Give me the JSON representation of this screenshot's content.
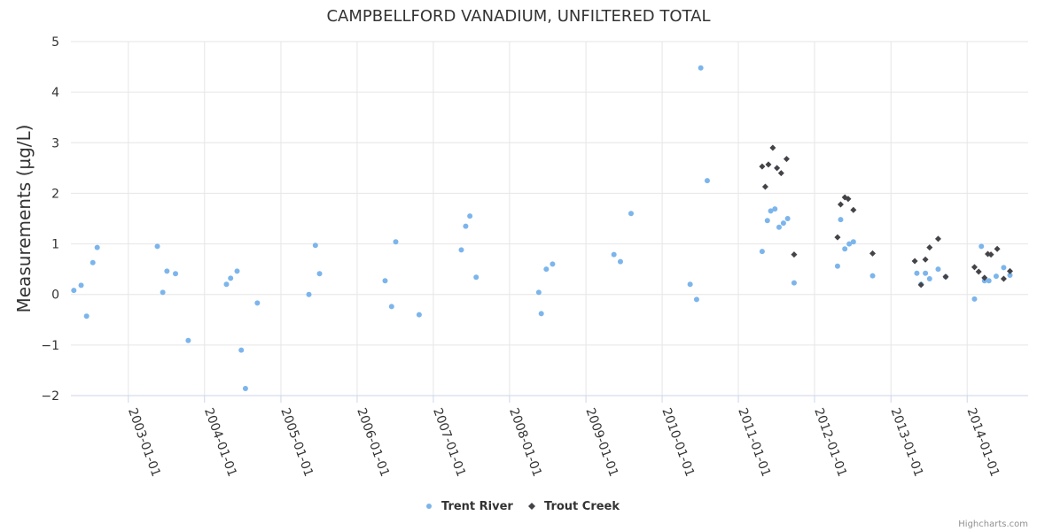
{
  "chart_data": {
    "type": "scatter",
    "title": "CAMPBELLFORD VANADIUM, UNFILTERED TOTAL",
    "ylabel": "Measurements (µg/L)",
    "xlabel": "",
    "ylim": [
      -2,
      5
    ],
    "yticks": [
      -2,
      -1,
      0,
      1,
      2,
      3,
      4,
      5
    ],
    "ytick_labels": [
      "−2",
      "−1",
      "0",
      "1",
      "2",
      "3",
      "4",
      "5"
    ],
    "xlim": [
      "2002-04-01",
      "2014-10-20"
    ],
    "xticks": [
      "2003-01-01",
      "2004-01-01",
      "2005-01-01",
      "2006-01-01",
      "2007-01-01",
      "2008-01-01",
      "2009-01-01",
      "2010-01-01",
      "2011-01-01",
      "2012-01-01",
      "2013-01-01",
      "2014-01-01"
    ],
    "grid": true,
    "legend_position": "bottom-center",
    "series": [
      {
        "name": "Trent River",
        "color": "#7cb5ec",
        "marker": "circle",
        "points": [
          [
            "2002-04-15",
            0.08
          ],
          [
            "2002-05-20",
            0.18
          ],
          [
            "2002-06-15",
            -0.43
          ],
          [
            "2002-07-15",
            0.63
          ],
          [
            "2002-08-05",
            0.93
          ],
          [
            "2003-05-20",
            0.95
          ],
          [
            "2003-06-15",
            0.04
          ],
          [
            "2003-07-05",
            0.46
          ],
          [
            "2003-08-15",
            0.41
          ],
          [
            "2003-10-15",
            -0.91
          ],
          [
            "2004-04-15",
            0.2
          ],
          [
            "2004-05-05",
            0.32
          ],
          [
            "2004-06-05",
            0.46
          ],
          [
            "2004-06-25",
            -1.1
          ],
          [
            "2004-07-15",
            -1.86
          ],
          [
            "2004-09-10",
            -0.17
          ],
          [
            "2005-05-15",
            0.0
          ],
          [
            "2005-06-15",
            0.97
          ],
          [
            "2005-07-05",
            0.41
          ],
          [
            "2006-05-15",
            0.27
          ],
          [
            "2006-06-15",
            -0.24
          ],
          [
            "2006-07-05",
            1.04
          ],
          [
            "2006-10-25",
            -0.4
          ],
          [
            "2007-05-15",
            0.88
          ],
          [
            "2007-06-05",
            1.35
          ],
          [
            "2007-06-25",
            1.55
          ],
          [
            "2007-07-25",
            0.34
          ],
          [
            "2008-05-20",
            0.04
          ],
          [
            "2008-06-01",
            -0.38
          ],
          [
            "2008-06-25",
            0.5
          ],
          [
            "2008-07-25",
            0.6
          ],
          [
            "2009-05-15",
            0.79
          ],
          [
            "2009-06-15",
            0.65
          ],
          [
            "2009-08-05",
            1.6
          ],
          [
            "2010-05-15",
            0.2
          ],
          [
            "2010-06-15",
            -0.1
          ],
          [
            "2010-07-05",
            4.48
          ],
          [
            "2010-08-05",
            2.25
          ],
          [
            "2011-04-25",
            0.85
          ],
          [
            "2011-05-20",
            1.46
          ],
          [
            "2011-06-05",
            1.65
          ],
          [
            "2011-06-25",
            1.69
          ],
          [
            "2011-07-15",
            1.33
          ],
          [
            "2011-08-05",
            1.41
          ],
          [
            "2011-08-25",
            1.5
          ],
          [
            "2011-09-25",
            0.23
          ],
          [
            "2012-04-20",
            0.56
          ],
          [
            "2012-05-05",
            1.48
          ],
          [
            "2012-05-25",
            0.9
          ],
          [
            "2012-06-15",
            1.0
          ],
          [
            "2012-07-05",
            1.04
          ],
          [
            "2012-10-05",
            0.37
          ],
          [
            "2013-05-05",
            0.42
          ],
          [
            "2013-05-25",
            0.2
          ],
          [
            "2013-06-15",
            0.42
          ],
          [
            "2013-07-05",
            0.31
          ],
          [
            "2013-08-15",
            0.5
          ],
          [
            "2013-09-20",
            0.35
          ],
          [
            "2014-02-05",
            -0.09
          ],
          [
            "2014-03-10",
            0.95
          ],
          [
            "2014-03-25",
            0.27
          ],
          [
            "2014-04-15",
            0.27
          ],
          [
            "2014-05-20",
            0.36
          ],
          [
            "2014-06-25",
            0.53
          ],
          [
            "2014-07-25",
            0.38
          ]
        ]
      },
      {
        "name": "Trout Creek",
        "color": "#434348",
        "marker": "diamond",
        "points": [
          [
            "2011-04-25",
            2.53
          ],
          [
            "2011-05-10",
            2.13
          ],
          [
            "2011-05-25",
            2.57
          ],
          [
            "2011-06-15",
            2.9
          ],
          [
            "2011-07-05",
            2.5
          ],
          [
            "2011-07-25",
            2.4
          ],
          [
            "2011-08-20",
            2.68
          ],
          [
            "2011-09-25",
            0.79
          ],
          [
            "2012-04-20",
            1.13
          ],
          [
            "2012-05-05",
            1.78
          ],
          [
            "2012-05-25",
            1.92
          ],
          [
            "2012-06-10",
            1.89
          ],
          [
            "2012-07-05",
            1.67
          ],
          [
            "2012-10-05",
            0.81
          ],
          [
            "2013-04-25",
            0.66
          ],
          [
            "2013-05-25",
            0.19
          ],
          [
            "2013-06-15",
            0.69
          ],
          [
            "2013-07-05",
            0.93
          ],
          [
            "2013-08-15",
            1.1
          ],
          [
            "2013-09-20",
            0.35
          ],
          [
            "2014-02-05",
            0.54
          ],
          [
            "2014-02-25",
            0.45
          ],
          [
            "2014-03-25",
            0.33
          ],
          [
            "2014-04-10",
            0.8
          ],
          [
            "2014-04-25",
            0.79
          ],
          [
            "2014-05-25",
            0.9
          ],
          [
            "2014-06-25",
            0.31
          ],
          [
            "2014-07-25",
            0.46
          ]
        ]
      }
    ],
    "credit": "Highcharts.com"
  }
}
